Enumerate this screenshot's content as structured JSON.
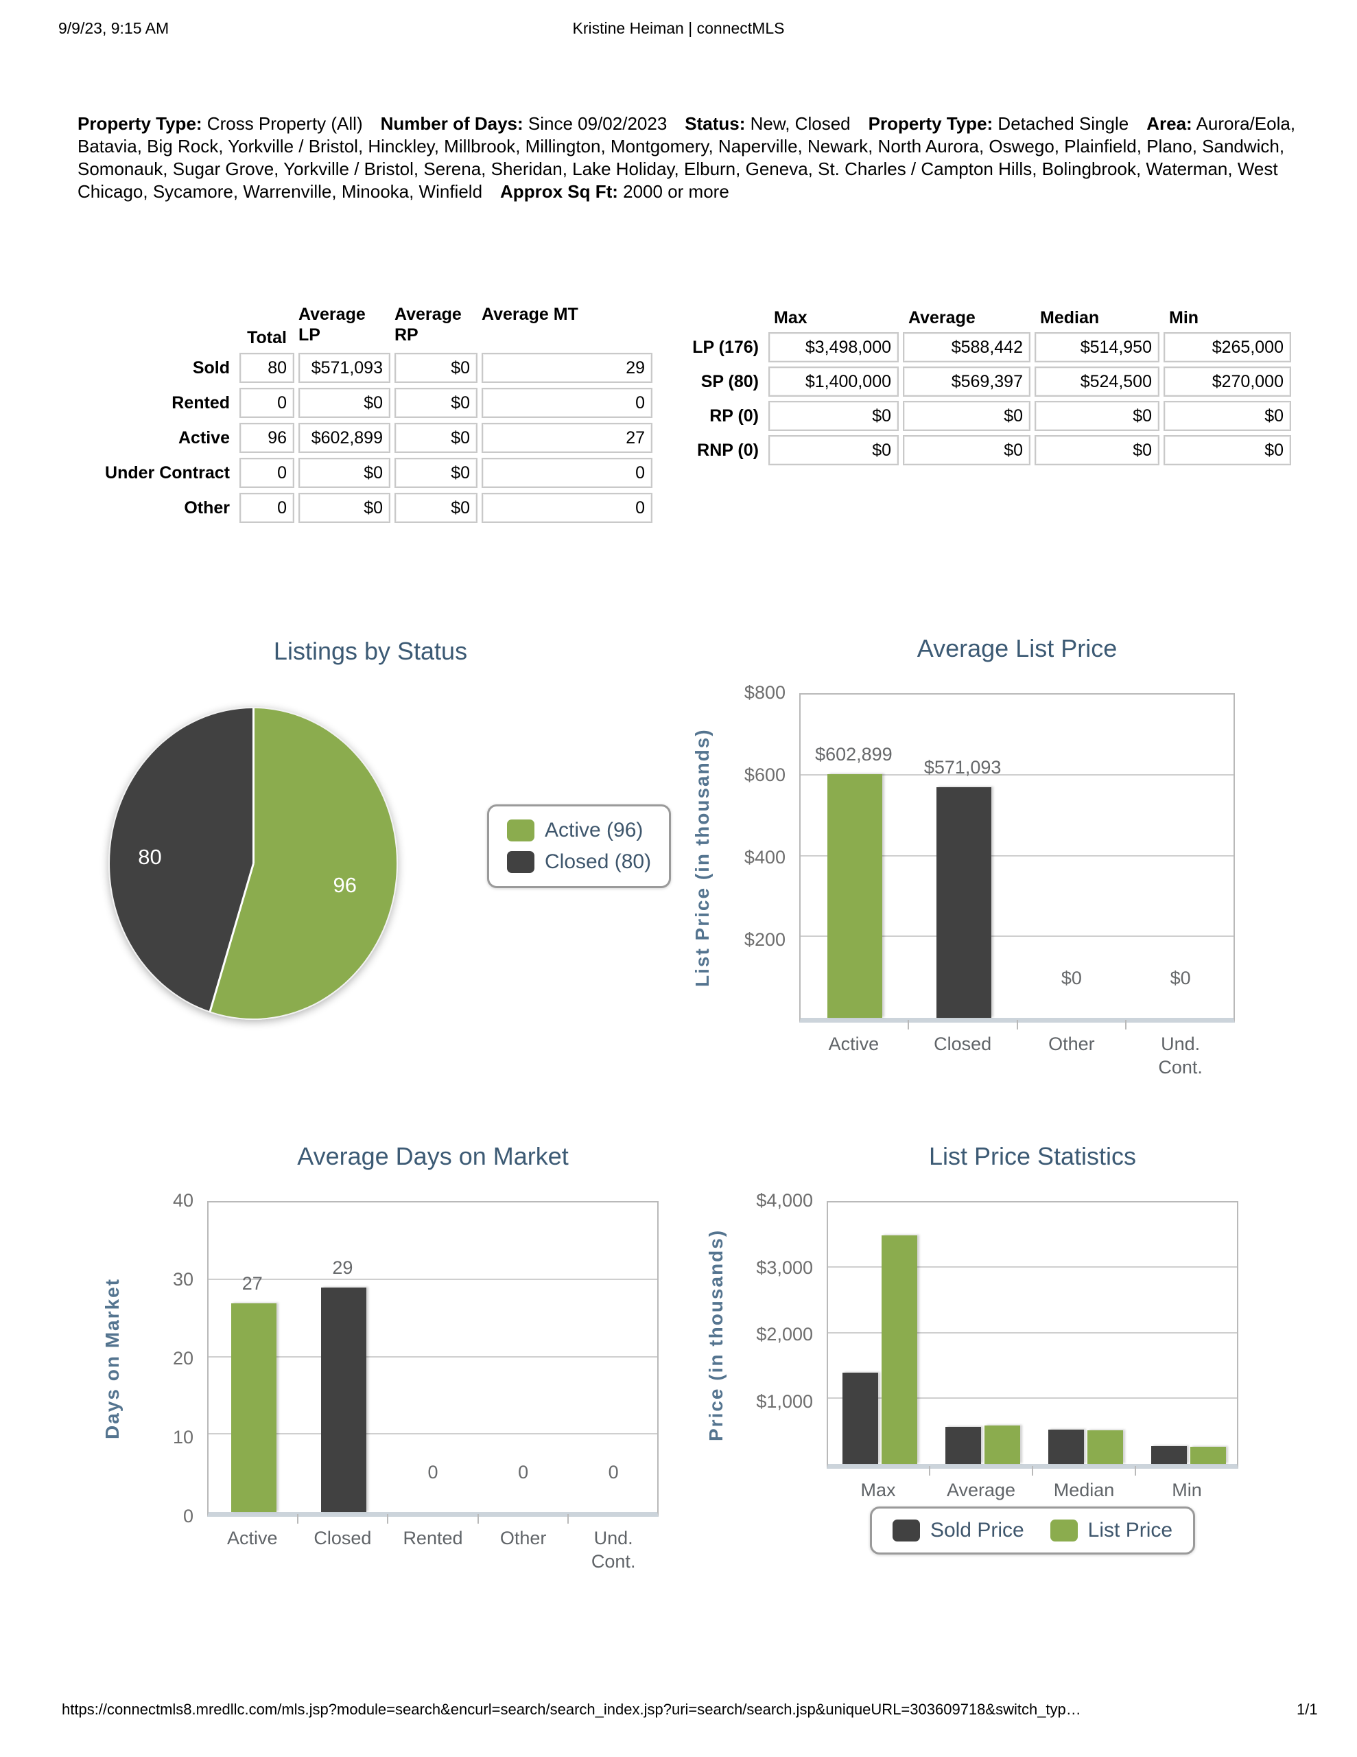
{
  "header": {
    "timestamp": "9/9/23, 9:15 AM",
    "title": "Kristine Heiman | connectMLS"
  },
  "criteria": {
    "items": [
      {
        "label": "Property Type:",
        "value": "Cross Property (All)"
      },
      {
        "label": "Number of Days:",
        "value": "Since 09/02/2023"
      },
      {
        "label": "Status:",
        "value": "New, Closed"
      },
      {
        "label": "Property Type:",
        "value": "Detached Single"
      },
      {
        "label": "Area:",
        "value": "Aurora/Eola, Batavia, Big Rock, Yorkville / Bristol, Hinckley, Millbrook, Millington, Montgomery, Naperville, Newark, North Aurora, Oswego, Plainfield, Plano, Sandwich, Somonauk, Sugar Grove, Yorkville / Bristol, Serena, Sheridan, Lake Holiday, Elburn, Geneva, St. Charles / Campton Hills, Bolingbrook, Waterman, West Chicago, Sycamore, Warrenville, Minooka, Winfield"
      },
      {
        "label": "Approx Sq Ft:",
        "value": "2000 or more"
      }
    ]
  },
  "status_table": {
    "headers": [
      "Total",
      "Average LP",
      "Average RP",
      "Average MT"
    ],
    "rows": [
      {
        "label": "Sold",
        "cells": [
          "80",
          "$571,093",
          "$0",
          "29"
        ]
      },
      {
        "label": "Rented",
        "cells": [
          "0",
          "$0",
          "$0",
          "0"
        ]
      },
      {
        "label": "Active",
        "cells": [
          "96",
          "$602,899",
          "$0",
          "27"
        ]
      },
      {
        "label": "Under Contract",
        "cells": [
          "0",
          "$0",
          "$0",
          "0"
        ]
      },
      {
        "label": "Other",
        "cells": [
          "0",
          "$0",
          "$0",
          "0"
        ]
      }
    ]
  },
  "price_table": {
    "headers": [
      "Max",
      "Average",
      "Median",
      "Min"
    ],
    "rows": [
      {
        "label": "LP (176)",
        "cells": [
          "$3,498,000",
          "$588,442",
          "$514,950",
          "$265,000"
        ]
      },
      {
        "label": "SP (80)",
        "cells": [
          "$1,400,000",
          "$569,397",
          "$524,500",
          "$270,000"
        ]
      },
      {
        "label": "RP (0)",
        "cells": [
          "$0",
          "$0",
          "$0",
          "$0"
        ]
      },
      {
        "label": "RNP (0)",
        "cells": [
          "$0",
          "$0",
          "$0",
          "$0"
        ]
      }
    ]
  },
  "chart_data": [
    {
      "type": "pie",
      "title": "Listings by Status",
      "slices": [
        {
          "label": "Active",
          "value": 96,
          "color": "#8bac4e"
        },
        {
          "label": "Closed",
          "value": 80,
          "color": "#414141"
        }
      ],
      "legend": [
        "Active (96)",
        "Closed (80)"
      ],
      "legend_position": "right"
    },
    {
      "type": "bar",
      "title": "Average List Price",
      "ylabel": "List Price (in thousands)",
      "categories": [
        "Active",
        "Closed",
        "Other",
        "Und.\nCont."
      ],
      "values": [
        602.899,
        571.093,
        0,
        0
      ],
      "data_labels": [
        "$602,899",
        "$571,093",
        "$0",
        "$0"
      ],
      "bar_colors": [
        "#8bac4e",
        "#414141",
        "#8bac4e",
        "#414141"
      ],
      "ylim": [
        0,
        800
      ],
      "yticks": [
        200,
        400,
        600,
        800
      ],
      "ytick_labels": [
        "$200",
        "$400",
        "$600",
        "$800"
      ],
      "grid": true
    },
    {
      "type": "bar",
      "title": "Average Days on Market",
      "ylabel": "Days on Market",
      "categories": [
        "Active",
        "Closed",
        "Rented",
        "Other",
        "Und.\nCont."
      ],
      "values": [
        27,
        29,
        0,
        0,
        0
      ],
      "data_labels": [
        "27",
        "29",
        "0",
        "0",
        "0"
      ],
      "bar_colors": [
        "#8bac4e",
        "#414141",
        "#8bac4e",
        "#414141",
        "#8bac4e"
      ],
      "ylim": [
        0,
        40
      ],
      "yticks": [
        0,
        10,
        20,
        30,
        40
      ],
      "ytick_labels": [
        "0",
        "10",
        "20",
        "30",
        "40"
      ],
      "grid": true
    },
    {
      "type": "grouped_bar",
      "title": "List Price Statistics",
      "ylabel": "Price (in thousands)",
      "categories": [
        "Max",
        "Average",
        "Median",
        "Min"
      ],
      "series": [
        {
          "name": "Sold Price",
          "color": "#414141",
          "values": [
            1400,
            569.397,
            524.5,
            270
          ]
        },
        {
          "name": "List Price",
          "color": "#8bac4e",
          "values": [
            3498,
            588.442,
            514.95,
            265
          ]
        }
      ],
      "ylim": [
        0,
        4000
      ],
      "yticks": [
        1000,
        2000,
        3000,
        4000
      ],
      "ytick_labels": [
        "$1,000",
        "$2,000",
        "$3,000",
        "$4,000"
      ],
      "legend_position": "bottom",
      "grid": true
    }
  ],
  "footer": {
    "url": "https://connectmls8.mredllc.com/mls.jsp?module=search&encurl=search/search_index.jsp?uri=search/search.jsp&uniqueURL=303609718&switch_typ…",
    "page": "1/1"
  },
  "colors": {
    "active_green": "#8bac4e",
    "closed_dark": "#414141",
    "chart_title": "#3c5a74",
    "axis_label": "#54748f",
    "tick_label": "#6e6e6e",
    "x_label": "#606468",
    "data_label": "#67696b",
    "gridline": "#cfcfcf",
    "plot_border": "#b9b9b9",
    "axis_strip": "#ccd4db",
    "legend_text": "#3e566c",
    "legend_border": "#9a9a9a",
    "cell_border": "#c9c9c9"
  }
}
